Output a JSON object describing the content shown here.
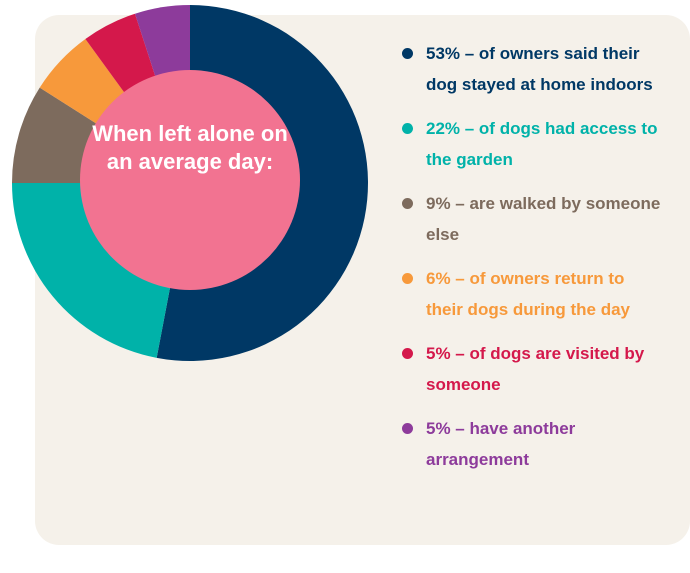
{
  "chart_data": {
    "type": "donut",
    "center_label": "When left alone on an average day:",
    "categories": [
      "53% – of owners said their dog stayed at home indoors",
      "22% – of dogs had access to the garden",
      "9% – are walked by someone else",
      "6% – of owners return to their dogs during the day",
      "5% – of dogs are visited by someone",
      "5% – have another arrangement"
    ],
    "values": [
      53,
      22,
      9,
      6,
      5,
      5
    ],
    "colors": [
      "#003865",
      "#00b2a9",
      "#7d6b5d",
      "#f7993b",
      "#d4184b",
      "#8d3b9b"
    ],
    "center_color": "#f27391"
  }
}
